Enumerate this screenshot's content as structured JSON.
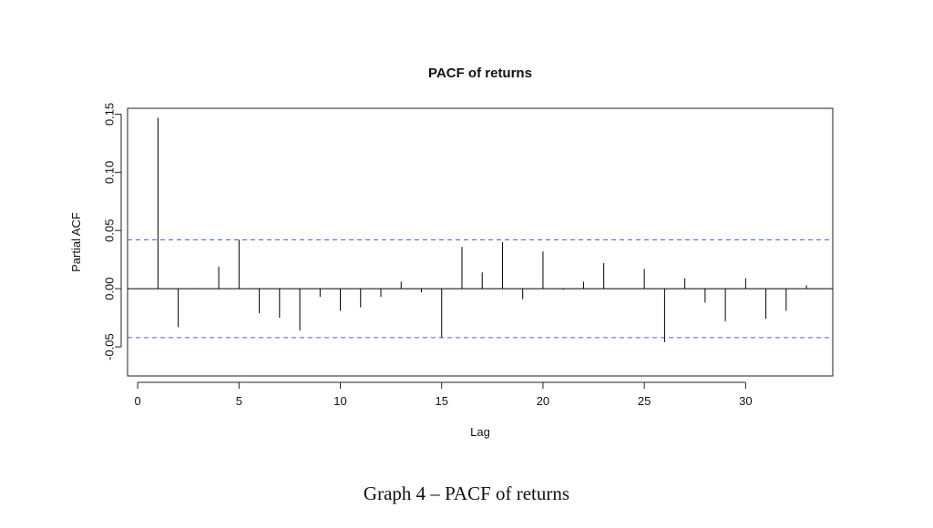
{
  "chart_data": {
    "type": "bar",
    "title": "PACF of returns",
    "xlabel": "Lag",
    "ylabel": "Partial ACF",
    "xlim": [
      -0.5,
      34.3
    ],
    "ylim": [
      -0.075,
      0.155
    ],
    "x_ticks": [
      0,
      5,
      10,
      15,
      20,
      25,
      30
    ],
    "x_tick_labels": [
      "0",
      "5",
      "10",
      "15",
      "20",
      "25",
      "30"
    ],
    "y_ticks": [
      -0.05,
      0.0,
      0.05,
      0.1,
      0.15
    ],
    "y_tick_labels": [
      "-0.05",
      "0.00",
      "0.05",
      "0.10",
      "0.15"
    ],
    "confidence_bound": 0.042,
    "grid": false,
    "colors": {
      "bars": "#000000",
      "confidence": "#4169e1",
      "zero_line": "#000000"
    },
    "lags": [
      1,
      2,
      3,
      4,
      5,
      6,
      7,
      8,
      9,
      10,
      11,
      12,
      13,
      14,
      15,
      16,
      17,
      18,
      19,
      20,
      21,
      22,
      23,
      24,
      25,
      26,
      27,
      28,
      29,
      30,
      31,
      32,
      33
    ],
    "values": [
      0.147,
      -0.033,
      0.0005,
      0.019,
      0.042,
      -0.021,
      -0.025,
      -0.036,
      -0.007,
      -0.019,
      -0.016,
      -0.007,
      0.006,
      -0.003,
      -0.042,
      0.036,
      0.014,
      0.04,
      -0.009,
      0.032,
      -0.001,
      0.006,
      0.022,
      0.0,
      0.017,
      -0.046,
      0.009,
      -0.012,
      -0.028,
      0.009,
      -0.026,
      -0.019,
      0.003
    ]
  },
  "caption": "Graph 4 – PACF of returns"
}
